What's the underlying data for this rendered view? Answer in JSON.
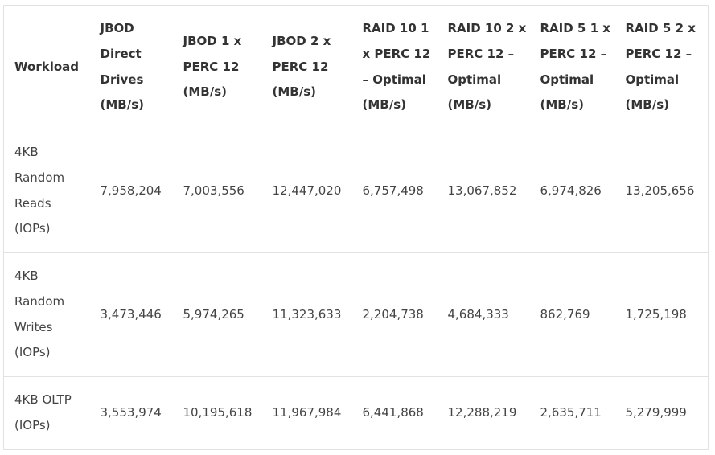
{
  "table": {
    "headers": [
      "Workload",
      "JBOD Direct Drives (MB/s)",
      "JBOD 1 x PERC 12 (MB/s)",
      "JBOD 2 x PERC 12 (MB/s)",
      "RAID 10 1 x PERC 12 – Optimal (MB/s)",
      "RAID 10 2 x PERC 12 – Optimal (MB/s)",
      "RAID 5 1 x PERC 12 – Optimal (MB/s)",
      "RAID 5 2 x PERC 12 – Optimal (MB/s)"
    ],
    "rows": [
      [
        "4KB Random Reads (IOPs)",
        "7,958,204",
        "7,003,556",
        "12,447,020",
        "6,757,498",
        "13,067,852",
        "6,974,826",
        "13,205,656"
      ],
      [
        "4KB Random Writes (IOPs)",
        "3,473,446",
        "5,974,265",
        "11,323,633",
        "2,204,738",
        "4,684,333",
        "862,769",
        "1,725,198"
      ],
      [
        "4KB OLTP (IOPs)",
        "3,553,974",
        "10,195,618",
        "11,967,984",
        "6,441,868",
        "12,288,219",
        "2,635,711",
        "5,279,999"
      ]
    ]
  }
}
